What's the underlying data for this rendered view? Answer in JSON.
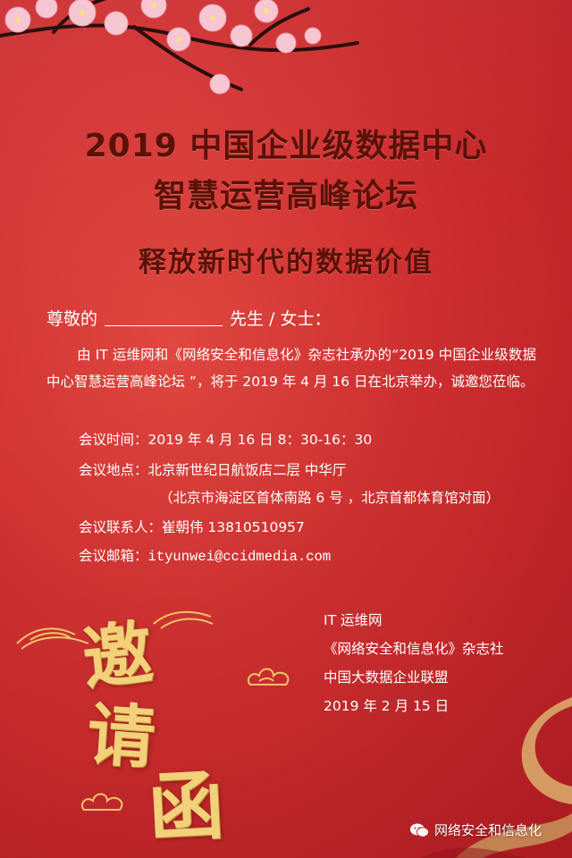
{
  "header": {
    "title_line1": "2019 中国企业级数据中心",
    "title_line2": "智慧运营高峰论坛",
    "subtitle": "释放新时代的数据价值"
  },
  "letter": {
    "salutation_prefix": "尊敬的",
    "salutation_suffix": "先生 / 女士：",
    "body": "由 IT 运维网和《网络安全和信息化》杂志社承办的“2019 中国企业级数据中心智慧运营高峰论坛 ”，将于 2019 年 4 月 16 日在北京举办，诚邀您莅临。",
    "time": "会议时间：2019 年 4 月 16 日  8：30-16：30",
    "venue": "会议地点：北京新世纪日航饭店二层 中华厅",
    "address": "（北京市海淀区首体南路 6 号 ，北京首都体育馆对面）",
    "contact": "会议联系人：崔朝伟  13810510957",
    "email_label": "会议邮箱：",
    "email": "ityunwei@ccidmedia.com"
  },
  "signature": {
    "org1": "IT 运维网",
    "org2": "《网络安全和信息化》杂志社",
    "org3": "中国大数据企业联盟",
    "date": "2019 年 2 月 15 日"
  },
  "calligraphy": {
    "char1": "邀",
    "char2": "请",
    "char3": "函"
  },
  "watermark": {
    "text": "网络安全和信息化",
    "icon": "wechat-icon"
  },
  "colors": {
    "background": "#c8252b",
    "title": "#5a1108",
    "gold": "#f3d07a",
    "text": "#ffffff"
  }
}
